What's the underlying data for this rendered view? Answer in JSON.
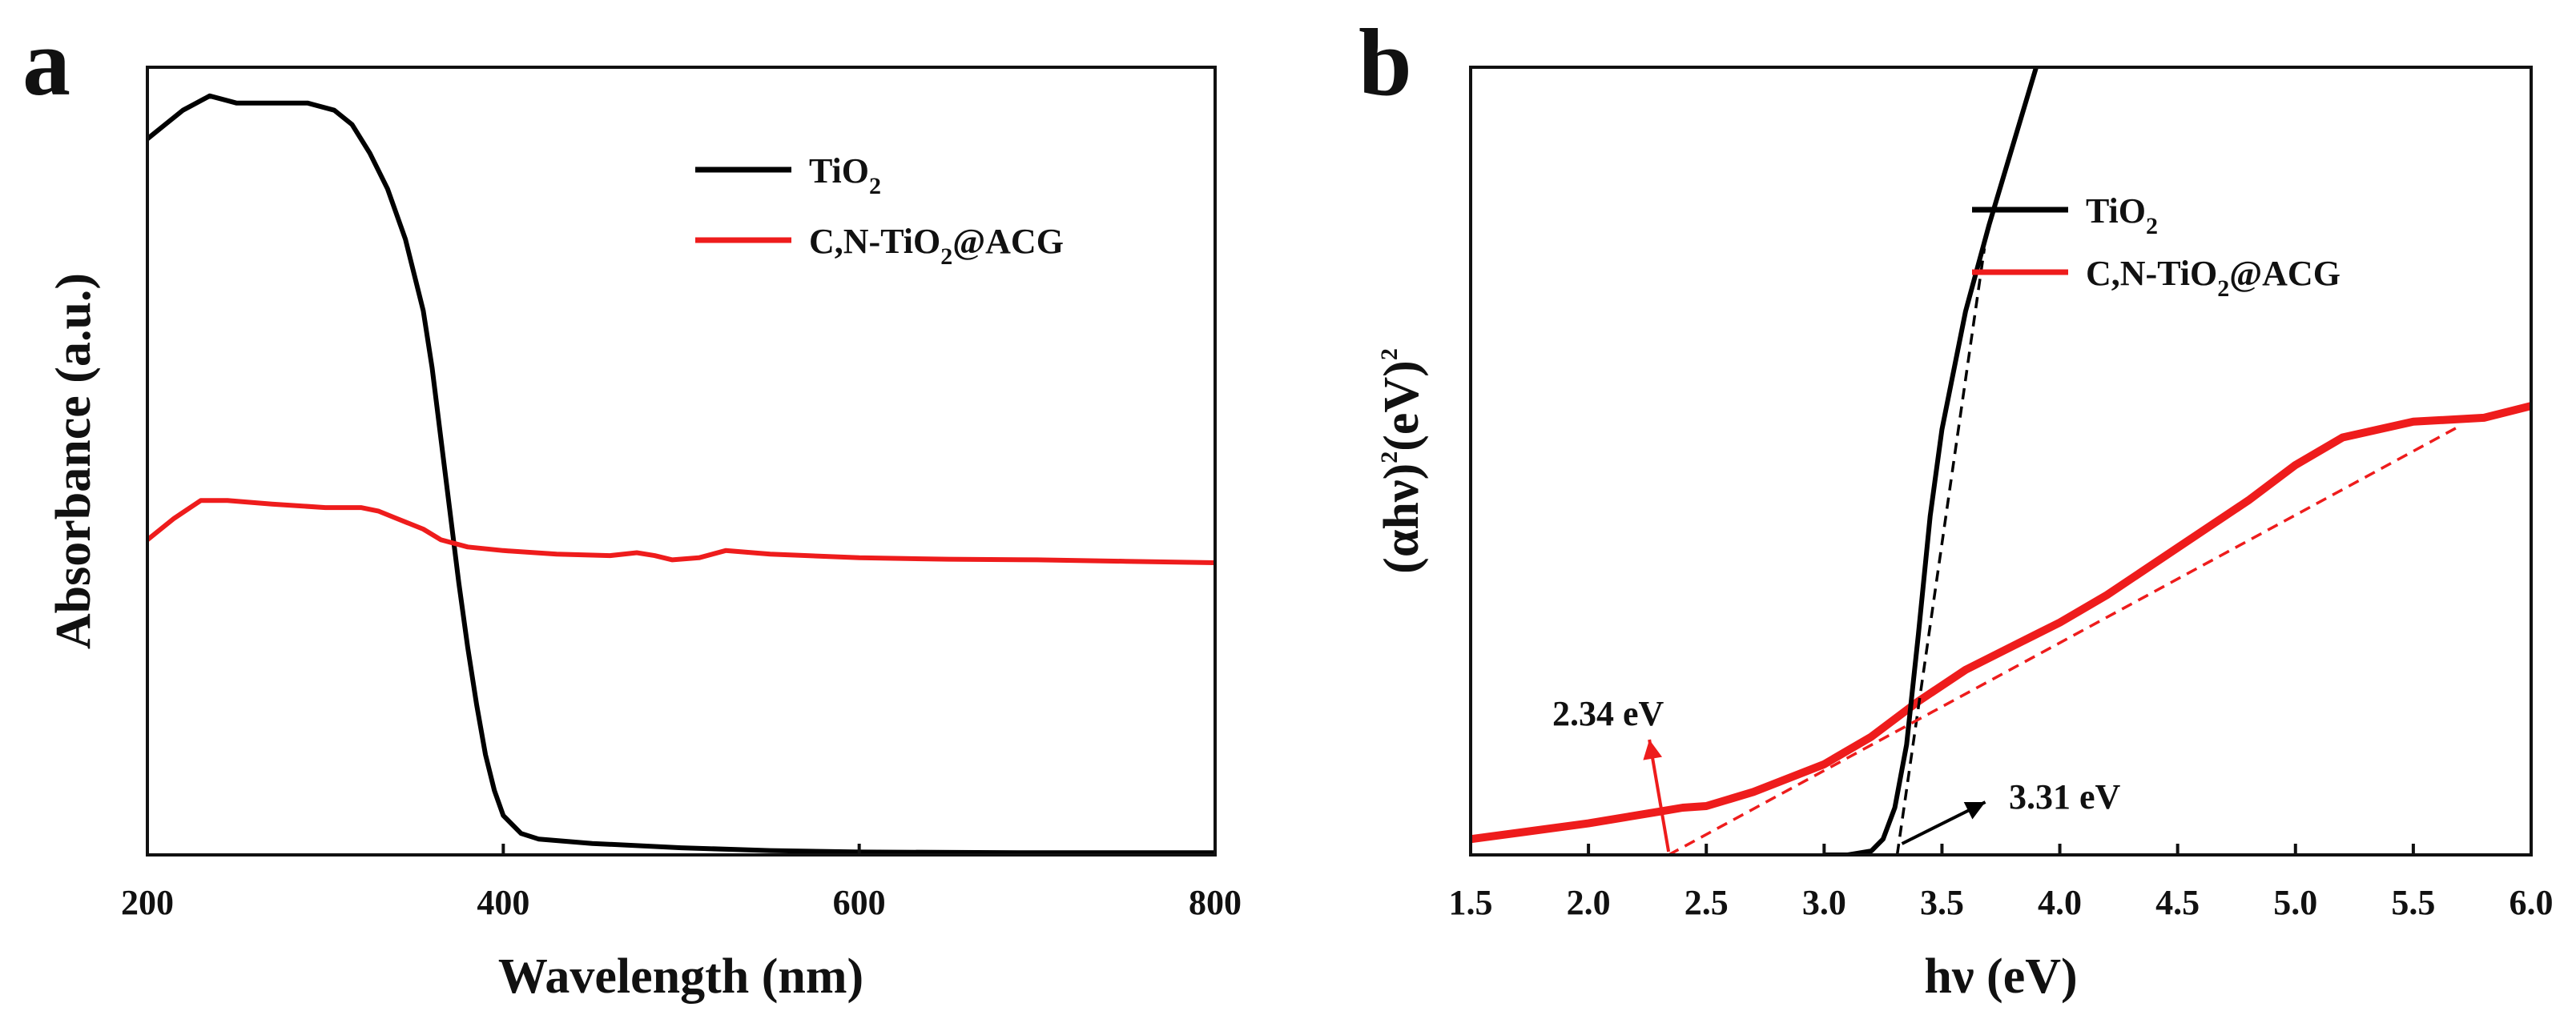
{
  "chart_data": [
    {
      "type": "line",
      "panel_label": "a",
      "xlabel": "Wavelength (nm)",
      "ylabel": "Absorbance (a.u.)",
      "xlim": [
        200,
        800
      ],
      "ylim": [
        0,
        1.1
      ],
      "x_ticks": [
        "200",
        "400",
        "600",
        "800"
      ],
      "x_tick_values": [
        200,
        400,
        600,
        800
      ],
      "y_ticks_labeled": false,
      "legend_position": "top-right",
      "series": [
        {
          "name": "TiO2",
          "legend": {
            "main": "TiO",
            "sub": "2",
            "rest": ""
          },
          "color": "#000000",
          "x": [
            200,
            210,
            220,
            235,
            250,
            270,
            290,
            305,
            315,
            325,
            335,
            345,
            355,
            360,
            365,
            370,
            375,
            380,
            385,
            390,
            395,
            400,
            410,
            420,
            450,
            500,
            550,
            600,
            700,
            800
          ],
          "y": [
            1.0,
            1.02,
            1.04,
            1.06,
            1.05,
            1.05,
            1.05,
            1.04,
            1.02,
            0.98,
            0.93,
            0.86,
            0.76,
            0.68,
            0.58,
            0.48,
            0.38,
            0.29,
            0.21,
            0.14,
            0.09,
            0.055,
            0.03,
            0.022,
            0.016,
            0.01,
            0.006,
            0.004,
            0.003,
            0.003
          ]
        },
        {
          "name": "C,N-TiO2@ACG",
          "legend": {
            "main": "C,N-TiO",
            "sub": "2",
            "rest": "@ACG"
          },
          "color": "#ee1c1c",
          "x": [
            200,
            215,
            230,
            245,
            270,
            300,
            320,
            330,
            340,
            355,
            365,
            380,
            400,
            430,
            460,
            475,
            485,
            495,
            510,
            525,
            550,
            600,
            650,
            700,
            750,
            800
          ],
          "y": [
            0.44,
            0.47,
            0.495,
            0.495,
            0.49,
            0.485,
            0.485,
            0.48,
            0.47,
            0.455,
            0.44,
            0.43,
            0.425,
            0.42,
            0.418,
            0.422,
            0.418,
            0.412,
            0.415,
            0.425,
            0.42,
            0.415,
            0.413,
            0.412,
            0.41,
            0.408
          ]
        }
      ]
    },
    {
      "type": "line",
      "panel_label": "b",
      "xlabel": "hν (eV)",
      "ylabel": "(αhν)²(eV)²",
      "ylabel_parts": {
        "open": "(αhν)",
        "sup1": "2",
        "mid": "(eV)",
        "sup2": "2"
      },
      "xlim": [
        1.5,
        6.0
      ],
      "ylim": [
        0,
        10
      ],
      "x_ticks": [
        "1.5",
        "2.0",
        "2.5",
        "3.0",
        "3.5",
        "4.0",
        "4.5",
        "5.0",
        "5.5",
        "6.0"
      ],
      "x_tick_values": [
        1.5,
        2.0,
        2.5,
        3.0,
        3.5,
        4.0,
        4.5,
        5.0,
        5.5,
        6.0
      ],
      "y_ticks_labeled": false,
      "legend_position": "top-right",
      "series": [
        {
          "name": "TiO2",
          "legend": {
            "main": "TiO",
            "sub": "2",
            "rest": ""
          },
          "color": "#000000",
          "x": [
            3.0,
            3.1,
            3.2,
            3.25,
            3.3,
            3.35,
            3.4,
            3.45,
            3.5,
            3.6,
            3.7,
            3.8,
            3.9
          ],
          "y": [
            0.0,
            0.0,
            0.05,
            0.2,
            0.6,
            1.4,
            2.8,
            4.3,
            5.4,
            6.9,
            8.0,
            9.0,
            10.0
          ]
        },
        {
          "name": "C,N-TiO2@ACG",
          "legend": {
            "main": "C,N-TiO",
            "sub": "2",
            "rest": "@ACG"
          },
          "color": "#ee1c1c",
          "x": [
            1.5,
            2.0,
            2.3,
            2.4,
            2.5,
            2.7,
            3.0,
            3.2,
            3.4,
            3.6,
            3.8,
            4.0,
            4.2,
            4.5,
            4.8,
            5.0,
            5.2,
            5.5,
            5.8,
            6.0
          ],
          "y": [
            0.2,
            0.4,
            0.55,
            0.6,
            0.62,
            0.8,
            1.15,
            1.5,
            1.95,
            2.35,
            2.65,
            2.95,
            3.3,
            3.9,
            4.5,
            4.95,
            5.3,
            5.5,
            5.55,
            5.7
          ]
        }
      ],
      "tangent_lines": [
        {
          "series": "TiO2",
          "color": "#000000",
          "x": [
            3.31,
            3.68
          ],
          "y": [
            0.0,
            7.7
          ]
        },
        {
          "series": "C,N-TiO2@ACG",
          "color": "#ee1c1c",
          "x": [
            2.34,
            5.7
          ],
          "y": [
            0.0,
            5.45
          ]
        }
      ],
      "annotations": [
        {
          "text": "2.34 eV",
          "color": "#ee1c1c",
          "x": 2.34
        },
        {
          "text": "3.31 eV",
          "color": "#000000",
          "x": 3.31
        }
      ]
    }
  ]
}
